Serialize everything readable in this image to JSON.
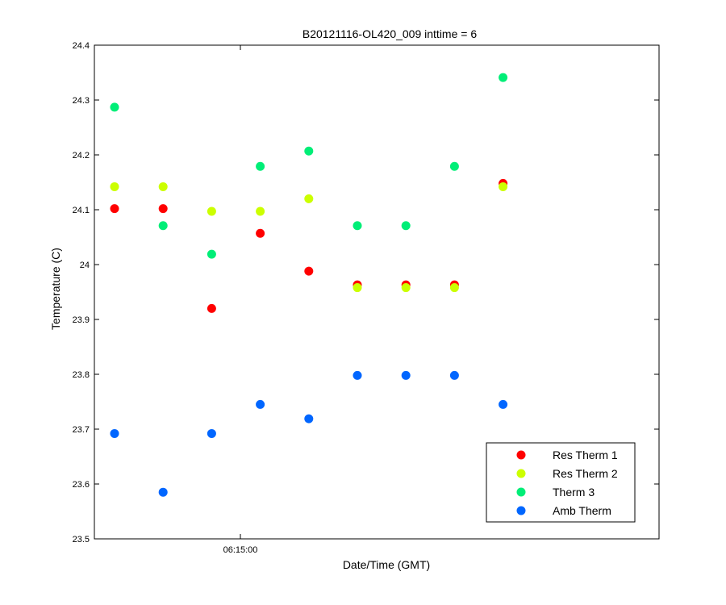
{
  "chart_data": {
    "type": "scatter",
    "title": "B20121116-OL420_009 inttime = 6",
    "xlabel": "Date/Time (GMT)",
    "ylabel": "Temperature (C)",
    "ylim": [
      23.5,
      24.4
    ],
    "yticks": [
      "23.5",
      "23.6",
      "23.7",
      "23.8",
      "23.9",
      "24",
      "24.1",
      "24.2",
      "24.3",
      "24.4"
    ],
    "xtick_labels": [
      "06:15:00"
    ],
    "legend_position": "bottom-right",
    "grid": false,
    "x": [
      1,
      2,
      3,
      4,
      5,
      6,
      7,
      8,
      9
    ],
    "series": [
      {
        "name": "Res Therm 1",
        "color": "#ff0000",
        "values": [
          24.102,
          24.102,
          23.92,
          24.057,
          23.988,
          23.963,
          23.963,
          23.963,
          24.148
        ]
      },
      {
        "name": "Res Therm 2",
        "color": "#ccff00",
        "values": [
          24.142,
          24.142,
          24.097,
          24.097,
          24.12,
          23.958,
          23.958,
          23.958,
          24.142
        ]
      },
      {
        "name": "Therm 3",
        "color": "#00ee77",
        "values": [
          24.287,
          24.071,
          24.019,
          24.179,
          24.207,
          24.071,
          24.071,
          24.179,
          24.341
        ]
      },
      {
        "name": "Amb Therm",
        "color": "#0066ff",
        "values": [
          23.692,
          23.585,
          23.692,
          23.745,
          23.719,
          23.798,
          23.798,
          23.798,
          23.745
        ]
      }
    ]
  }
}
